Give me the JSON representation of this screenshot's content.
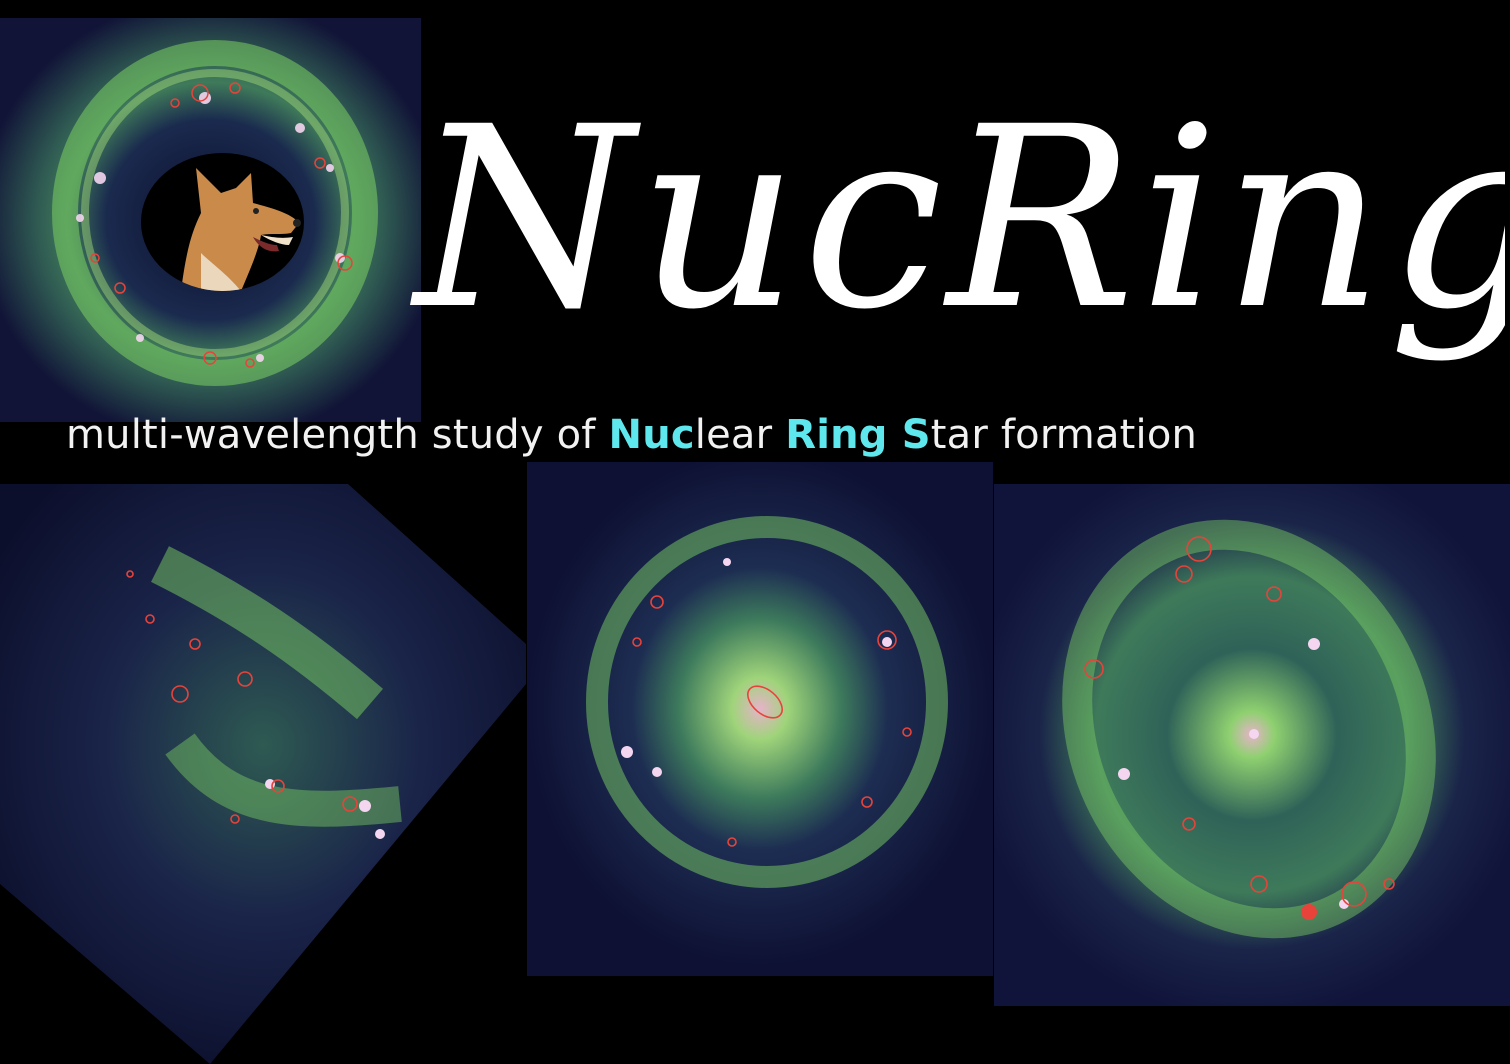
{
  "title": "NucRingS",
  "tagline": {
    "segments": [
      {
        "text": "multi-wavelength study of ",
        "highlight": false
      },
      {
        "text": "Nuc",
        "highlight": true
      },
      {
        "text": "lear ",
        "highlight": false
      },
      {
        "text": "Ring S",
        "highlight": true
      },
      {
        "text": "tar formation",
        "highlight": false
      }
    ]
  },
  "colors": {
    "background": "#000000",
    "title": "#ffffff",
    "tagline": "#f2f2f2",
    "highlight": "#5ee8ee",
    "contour": "#e8433a",
    "galaxy_green": "#7fcf6a",
    "galaxy_navy": "#1a1f4a"
  },
  "images": {
    "top_left": "barred spiral galaxy with nuclear ring and red contours",
    "bottom_left": "inclined spiral galaxy with red contours",
    "bottom_center": "face-on spiral galaxy with bright nucleus and red contours",
    "bottom_right": "spiral galaxy with red contours",
    "mascot": "shiba inu dog head in black oval"
  }
}
